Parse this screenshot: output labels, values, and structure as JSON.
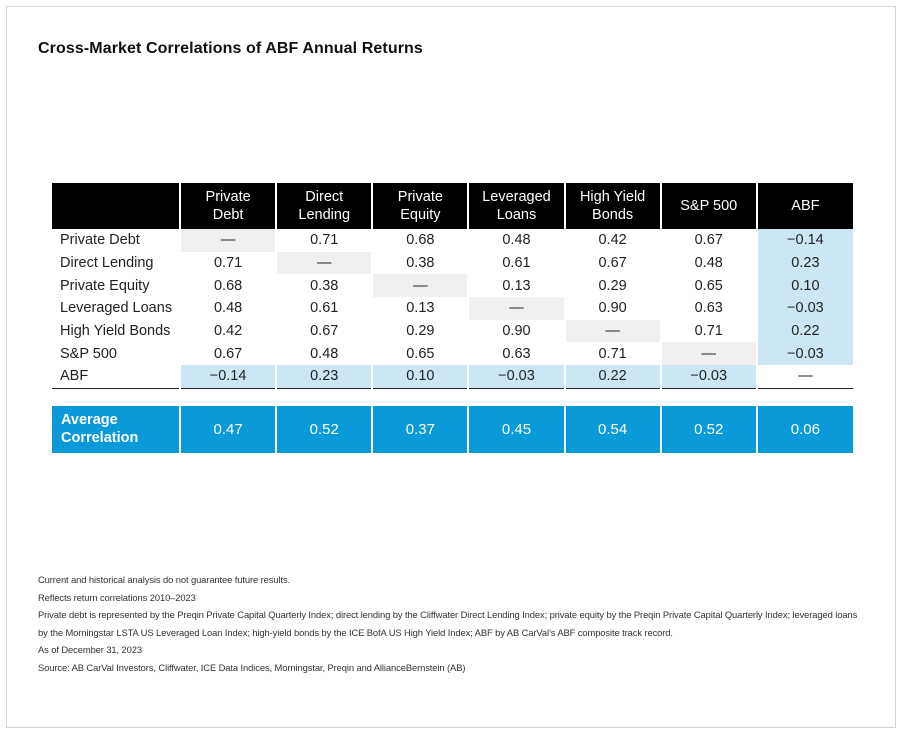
{
  "title": "Cross-Market Correlations of ABF Annual Returns",
  "chart_data": {
    "type": "table",
    "title": "Cross-Market Correlations of ABF Annual Returns",
    "columns": [
      {
        "line1": "Private",
        "line2": "Debt"
      },
      {
        "line1": "Direct",
        "line2": "Lending"
      },
      {
        "line1": "Private",
        "line2": "Equity"
      },
      {
        "line1": "Leveraged",
        "line2": "Loans"
      },
      {
        "line1": "High Yield",
        "line2": "Bonds"
      },
      {
        "line1": "S&P 500",
        "line2": ""
      },
      {
        "line1": "ABF",
        "line2": ""
      }
    ],
    "rows": [
      {
        "label": "Private Debt",
        "values": [
          "—",
          "0.71",
          "0.68",
          "0.48",
          "0.42",
          "0.67",
          "−0.14"
        ]
      },
      {
        "label": "Direct Lending",
        "values": [
          "0.71",
          "—",
          "0.38",
          "0.61",
          "0.67",
          "0.48",
          "0.23"
        ]
      },
      {
        "label": "Private Equity",
        "values": [
          "0.68",
          "0.38",
          "—",
          "0.13",
          "0.29",
          "0.65",
          "0.10"
        ]
      },
      {
        "label": "Leveraged Loans",
        "values": [
          "0.48",
          "0.61",
          "0.13",
          "—",
          "0.90",
          "0.63",
          "−0.03"
        ]
      },
      {
        "label": "High Yield Bonds",
        "values": [
          "0.42",
          "0.67",
          "0.29",
          "0.90",
          "—",
          "0.71",
          "0.22"
        ]
      },
      {
        "label": "S&P 500",
        "values": [
          "0.67",
          "0.48",
          "0.65",
          "0.63",
          "0.71",
          "—",
          "−0.03"
        ]
      },
      {
        "label": "ABF",
        "values": [
          "−0.14",
          "0.23",
          "0.10",
          "−0.03",
          "0.22",
          "−0.03",
          "—"
        ]
      }
    ],
    "average": {
      "label_line1": "Average",
      "label_line2": "Correlation",
      "values": [
        "0.47",
        "0.52",
        "0.37",
        "0.45",
        "0.54",
        "0.52",
        "0.06"
      ]
    },
    "colors": {
      "header_bg": "#000000",
      "diagonal_bg": "#f0f0f0",
      "abf_highlight": "#cde6f4",
      "average_bg": "#0a9ad9"
    }
  },
  "notes": [
    "Current and historical analysis do not guarantee future results.",
    "Reflects return correlations 2010–2023",
    "Private debt is represented by the Preqin Private Capital Quarterly Index; direct lending by the Cliffwater Direct Lending Index; private equity by the Preqin Private Capital Quarterly Index; leveraged loans by the Morningstar LSTA US Leveraged Loan Index; high-yield bonds by the ICE BofA US High Yield Index; ABF by AB CarVal’s ABF composite track record.",
    "As of December 31, 2023",
    "Source: AB CarVal Investors, Cliffwater, ICE Data Indices, Morningstar, Preqin and AllianceBernstein (AB)"
  ]
}
